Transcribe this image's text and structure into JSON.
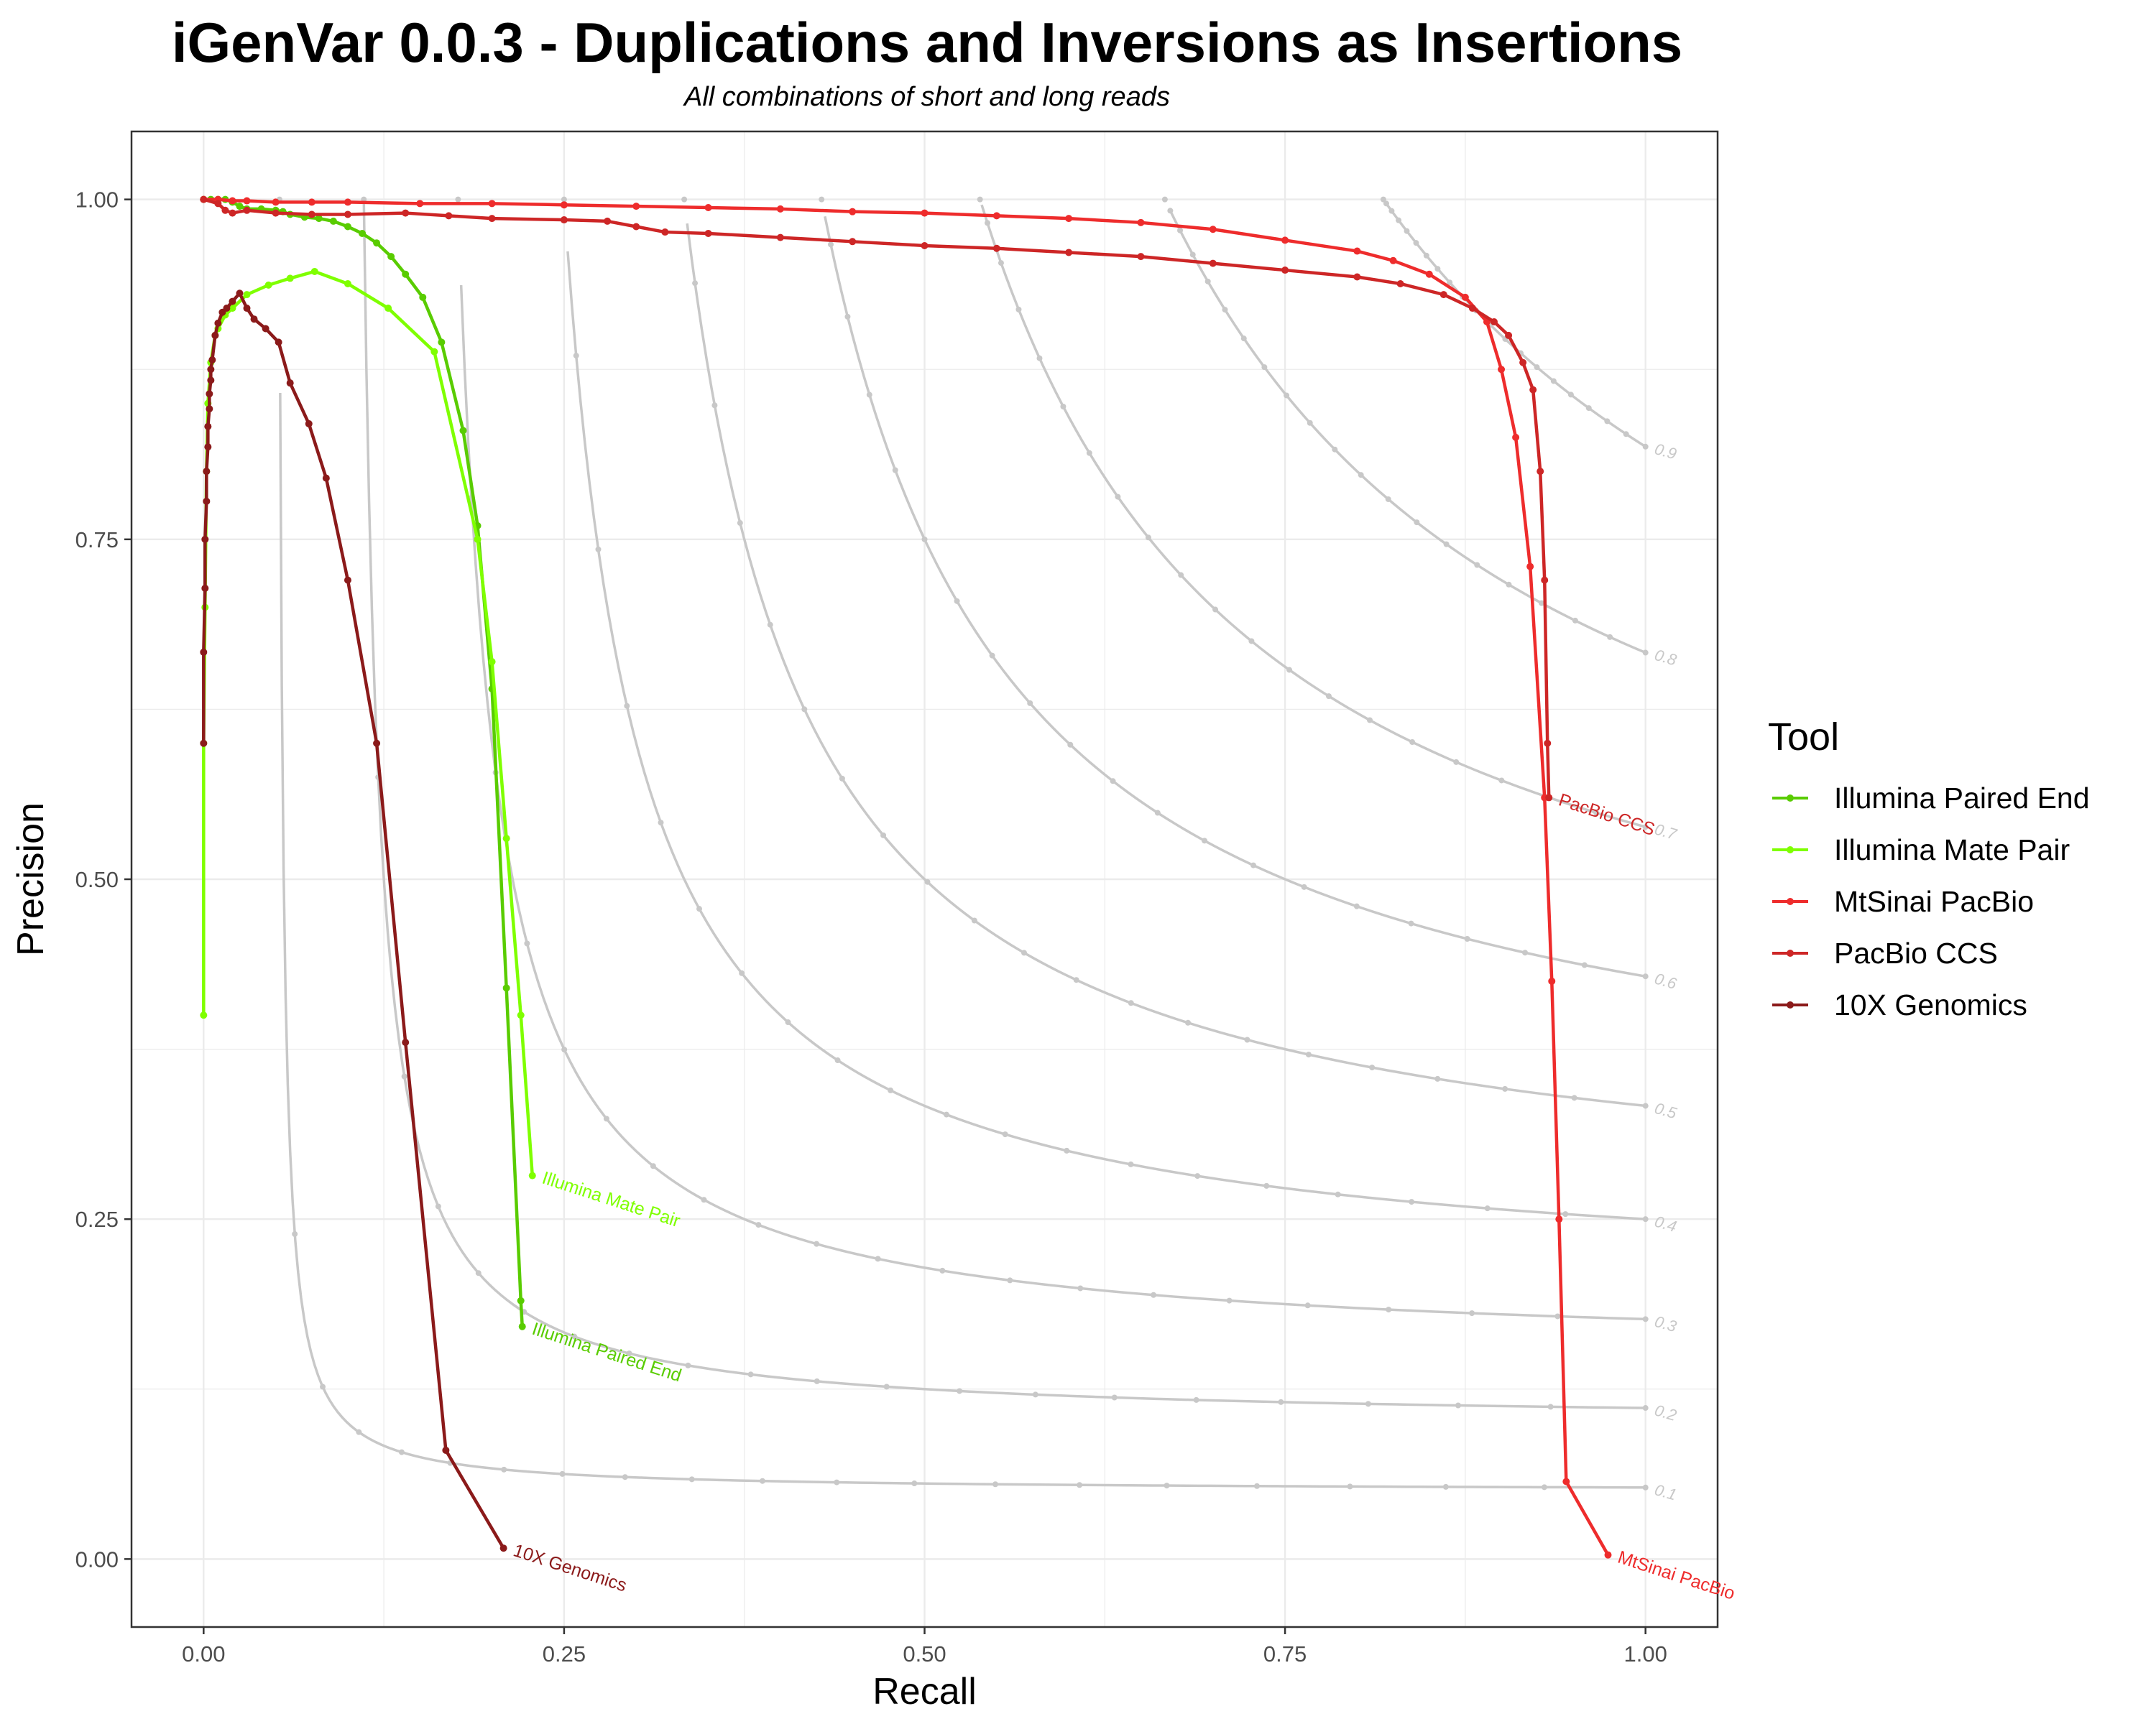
{
  "title": "iGenVar 0.0.3 - Duplications and Inversions as Insertions",
  "subtitle": "All combinations of short and long reads",
  "chart_data": {
    "type": "line",
    "xlabel": "Recall",
    "ylabel": "Precision",
    "xlim": [
      -0.05,
      1.05
    ],
    "ylim": [
      -0.05,
      1.05
    ],
    "xticks": [
      "0.00",
      "0.25",
      "0.50",
      "0.75",
      "1.00"
    ],
    "yticks": [
      "0.00",
      "0.25",
      "0.50",
      "0.75",
      "1.00"
    ],
    "grid": true,
    "legend_title": "Tool",
    "legend_position": "right",
    "series": [
      {
        "name": "Illumina Paired End",
        "color": "#59CC00",
        "end_label": "Illumina Paired End",
        "points": [
          [
            0.0,
            1.0
          ],
          [
            0.005,
            1.0
          ],
          [
            0.01,
            1.0
          ],
          [
            0.015,
            1.0
          ],
          [
            0.02,
            0.998
          ],
          [
            0.025,
            0.995
          ],
          [
            0.03,
            0.993
          ],
          [
            0.04,
            0.993
          ],
          [
            0.05,
            0.992
          ],
          [
            0.055,
            0.991
          ],
          [
            0.06,
            0.989
          ],
          [
            0.07,
            0.987
          ],
          [
            0.08,
            0.986
          ],
          [
            0.09,
            0.984
          ],
          [
            0.1,
            0.98
          ],
          [
            0.11,
            0.975
          ],
          [
            0.12,
            0.968
          ],
          [
            0.13,
            0.958
          ],
          [
            0.14,
            0.945
          ],
          [
            0.152,
            0.928
          ],
          [
            0.165,
            0.895
          ],
          [
            0.18,
            0.83
          ],
          [
            0.19,
            0.76
          ],
          [
            0.2,
            0.64
          ],
          [
            0.21,
            0.42
          ],
          [
            0.22,
            0.19
          ],
          [
            0.221,
            0.171
          ]
        ]
      },
      {
        "name": "Illumina Mate Pair",
        "color": "#7FFF00",
        "end_label": "Illumina Mate Pair",
        "points": [
          [
            0.0,
            0.4
          ],
          [
            0.0,
            0.6
          ],
          [
            0.001,
            0.7
          ],
          [
            0.002,
            0.8
          ],
          [
            0.003,
            0.85
          ],
          [
            0.005,
            0.88
          ],
          [
            0.008,
            0.9
          ],
          [
            0.01,
            0.905
          ],
          [
            0.015,
            0.915
          ],
          [
            0.02,
            0.92
          ],
          [
            0.03,
            0.93
          ],
          [
            0.045,
            0.937
          ],
          [
            0.06,
            0.942
          ],
          [
            0.077,
            0.947
          ],
          [
            0.1,
            0.938
          ],
          [
            0.128,
            0.92
          ],
          [
            0.16,
            0.888
          ],
          [
            0.19,
            0.75
          ],
          [
            0.2,
            0.66
          ],
          [
            0.21,
            0.53
          ],
          [
            0.22,
            0.4
          ],
          [
            0.228,
            0.282
          ]
        ]
      },
      {
        "name": "MtSinai PacBio",
        "color": "#EE2C2C",
        "end_label": "MtSinai PacBio",
        "points": [
          [
            0.0,
            1.0
          ],
          [
            0.01,
            1.0
          ],
          [
            0.02,
            0.999
          ],
          [
            0.03,
            0.999
          ],
          [
            0.05,
            0.998
          ],
          [
            0.075,
            0.998
          ],
          [
            0.1,
            0.998
          ],
          [
            0.15,
            0.997
          ],
          [
            0.2,
            0.997
          ],
          [
            0.25,
            0.996
          ],
          [
            0.3,
            0.995
          ],
          [
            0.35,
            0.994
          ],
          [
            0.4,
            0.993
          ],
          [
            0.45,
            0.991
          ],
          [
            0.5,
            0.99
          ],
          [
            0.55,
            0.988
          ],
          [
            0.6,
            0.986
          ],
          [
            0.65,
            0.983
          ],
          [
            0.7,
            0.978
          ],
          [
            0.75,
            0.97
          ],
          [
            0.8,
            0.962
          ],
          [
            0.825,
            0.955
          ],
          [
            0.85,
            0.945
          ],
          [
            0.875,
            0.928
          ],
          [
            0.89,
            0.91
          ],
          [
            0.9,
            0.875
          ],
          [
            0.91,
            0.825
          ],
          [
            0.92,
            0.73
          ],
          [
            0.93,
            0.56
          ],
          [
            0.935,
            0.425
          ],
          [
            0.94,
            0.25
          ],
          [
            0.945,
            0.057
          ],
          [
            0.974,
            0.003
          ]
        ]
      },
      {
        "name": "PacBio CCS",
        "color": "#CD2626",
        "end_label": "PacBio CCS",
        "points": [
          [
            0.0,
            1.0
          ],
          [
            0.01,
            0.997
          ],
          [
            0.015,
            0.992
          ],
          [
            0.02,
            0.99
          ],
          [
            0.03,
            0.992
          ],
          [
            0.05,
            0.99
          ],
          [
            0.075,
            0.989
          ],
          [
            0.1,
            0.989
          ],
          [
            0.14,
            0.99
          ],
          [
            0.17,
            0.988
          ],
          [
            0.2,
            0.986
          ],
          [
            0.25,
            0.985
          ],
          [
            0.28,
            0.984
          ],
          [
            0.3,
            0.98
          ],
          [
            0.32,
            0.976
          ],
          [
            0.35,
            0.975
          ],
          [
            0.4,
            0.972
          ],
          [
            0.45,
            0.969
          ],
          [
            0.5,
            0.966
          ],
          [
            0.55,
            0.964
          ],
          [
            0.6,
            0.961
          ],
          [
            0.65,
            0.958
          ],
          [
            0.7,
            0.953
          ],
          [
            0.75,
            0.948
          ],
          [
            0.8,
            0.943
          ],
          [
            0.83,
            0.938
          ],
          [
            0.86,
            0.93
          ],
          [
            0.88,
            0.92
          ],
          [
            0.895,
            0.91
          ],
          [
            0.905,
            0.9
          ],
          [
            0.915,
            0.88
          ],
          [
            0.922,
            0.86
          ],
          [
            0.927,
            0.8
          ],
          [
            0.93,
            0.72
          ],
          [
            0.932,
            0.6
          ],
          [
            0.933,
            0.56
          ]
        ]
      },
      {
        "name": "10X Genomics",
        "color": "#8B1A1A",
        "end_label": "10X Genomics",
        "points": [
          [
            0.0,
            0.6
          ],
          [
            0.0,
            0.667
          ],
          [
            0.001,
            0.714
          ],
          [
            0.001,
            0.75
          ],
          [
            0.002,
            0.778
          ],
          [
            0.002,
            0.8
          ],
          [
            0.003,
            0.818
          ],
          [
            0.003,
            0.833
          ],
          [
            0.004,
            0.846
          ],
          [
            0.004,
            0.857
          ],
          [
            0.005,
            0.867
          ],
          [
            0.005,
            0.875
          ],
          [
            0.006,
            0.882
          ],
          [
            0.008,
            0.9
          ],
          [
            0.01,
            0.909
          ],
          [
            0.013,
            0.917
          ],
          [
            0.016,
            0.92
          ],
          [
            0.02,
            0.925
          ],
          [
            0.025,
            0.931
          ],
          [
            0.03,
            0.92
          ],
          [
            0.035,
            0.912
          ],
          [
            0.043,
            0.905
          ],
          [
            0.052,
            0.895
          ],
          [
            0.06,
            0.865
          ],
          [
            0.073,
            0.835
          ],
          [
            0.085,
            0.795
          ],
          [
            0.1,
            0.72
          ],
          [
            0.12,
            0.6
          ],
          [
            0.14,
            0.38
          ],
          [
            0.168,
            0.08
          ],
          [
            0.208,
            0.008
          ]
        ]
      }
    ],
    "f_curves": {
      "labels": [
        "0.1",
        "0.2",
        "0.3",
        "0.4",
        "0.5",
        "0.6",
        "0.7",
        "0.8",
        "0.9"
      ],
      "color": "#C8C8C8"
    }
  }
}
